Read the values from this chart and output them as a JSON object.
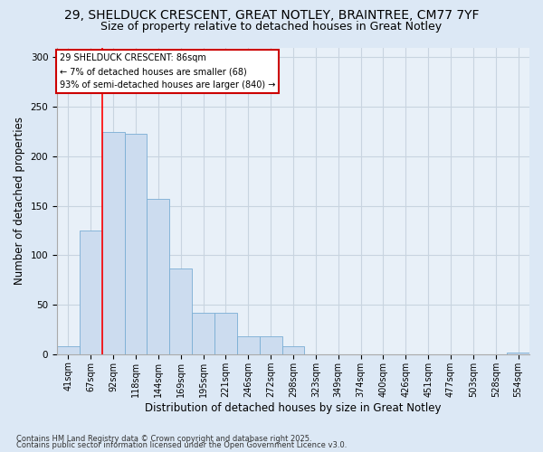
{
  "title1": "29, SHELDUCK CRESCENT, GREAT NOTLEY, BRAINTREE, CM77 7YF",
  "title2": "Size of property relative to detached houses in Great Notley",
  "xlabel": "Distribution of detached houses by size in Great Notley",
  "ylabel": "Number of detached properties",
  "categories": [
    "41sqm",
    "67sqm",
    "92sqm",
    "118sqm",
    "144sqm",
    "169sqm",
    "195sqm",
    "221sqm",
    "246sqm",
    "272sqm",
    "298sqm",
    "323sqm",
    "349sqm",
    "374sqm",
    "400sqm",
    "426sqm",
    "451sqm",
    "477sqm",
    "503sqm",
    "528sqm",
    "554sqm"
  ],
  "values": [
    8,
    125,
    225,
    223,
    157,
    87,
    42,
    42,
    18,
    18,
    8,
    0,
    0,
    0,
    0,
    0,
    0,
    0,
    0,
    0,
    2
  ],
  "bar_color": "#ccdcef",
  "bar_edge_color": "#7aaed4",
  "red_line_x": 1.5,
  "annotation_text": "29 SHELDUCK CRESCENT: 86sqm\n← 7% of detached houses are smaller (68)\n93% of semi-detached houses are larger (840) →",
  "annotation_box_color": "#ffffff",
  "annotation_box_edge": "#cc0000",
  "footnote1": "Contains HM Land Registry data © Crown copyright and database right 2025.",
  "footnote2": "Contains public sector information licensed under the Open Government Licence v3.0.",
  "ylim": [
    0,
    310
  ],
  "bg_color": "#dce8f5",
  "plot_bg_color": "#e8f0f8",
  "grid_color": "#c8d4e0",
  "title1_fontsize": 10,
  "title2_fontsize": 9,
  "tick_fontsize": 7,
  "ylabel_fontsize": 8.5,
  "xlabel_fontsize": 8.5,
  "footnote_fontsize": 6,
  "annotation_fontsize": 7
}
